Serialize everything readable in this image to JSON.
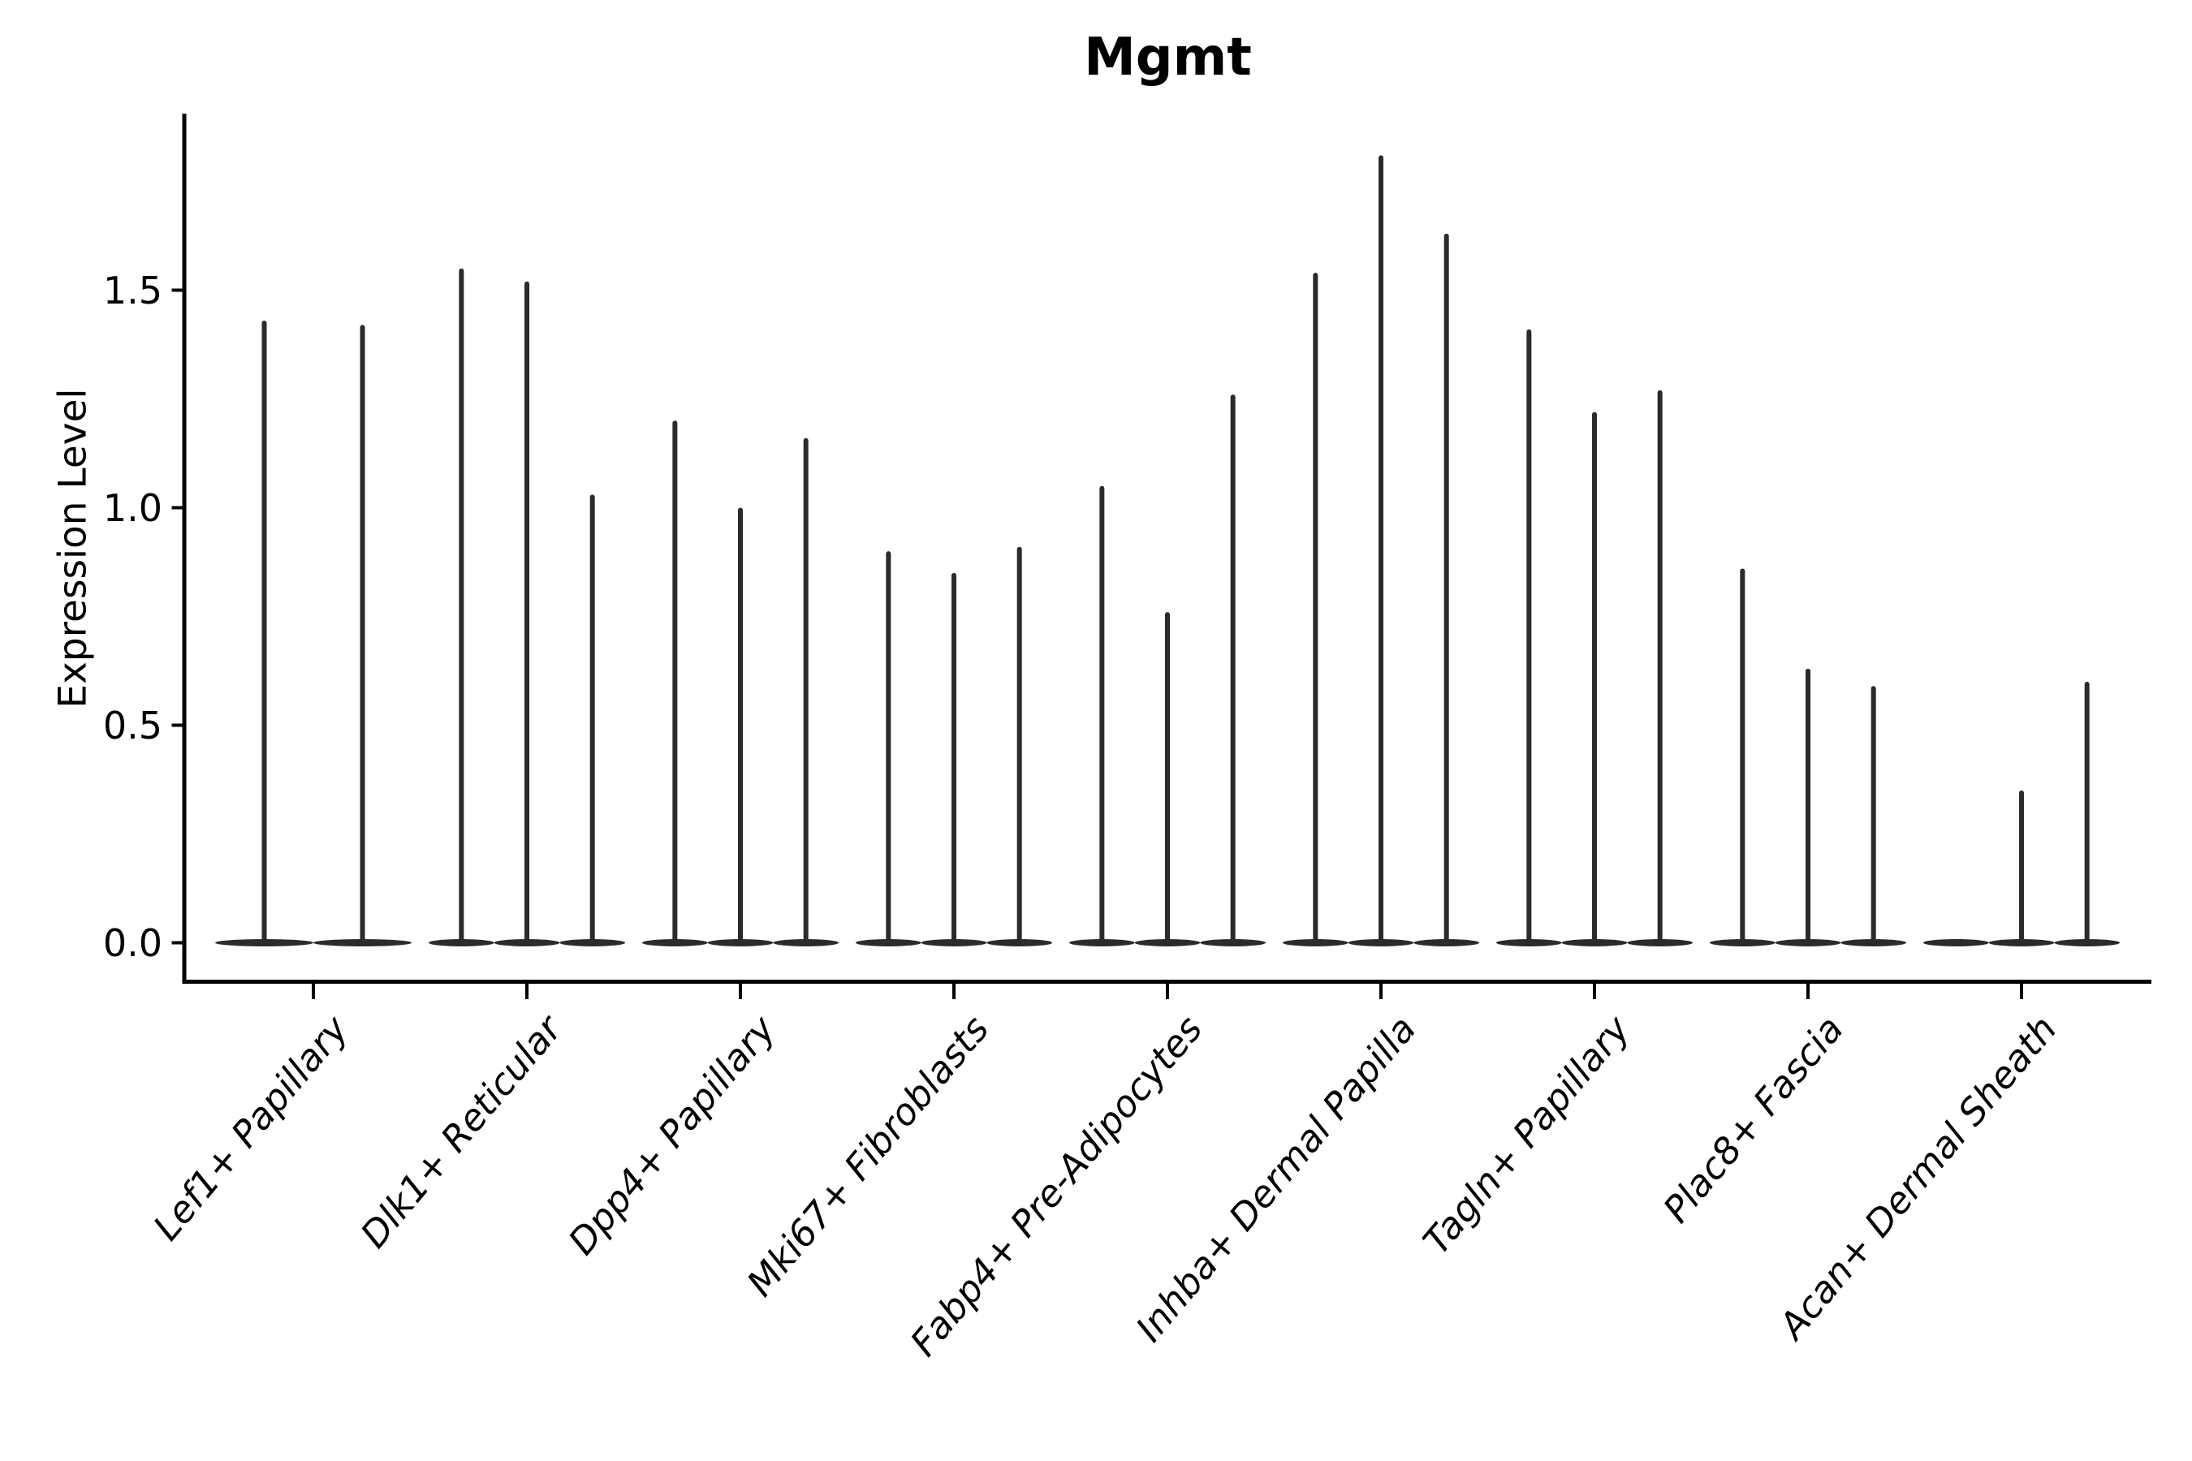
{
  "chart_data": {
    "type": "violin",
    "title": "Mgmt",
    "ylabel": "Expression Level",
    "xlabel": "",
    "ytick_labels": [
      "0.0",
      "0.5",
      "1.0",
      "1.5"
    ],
    "ytick_values": [
      0.0,
      0.5,
      1.0,
      1.5
    ],
    "ylim": [
      -0.094,
      1.906
    ],
    "grid": false,
    "legend": "none",
    "style_notes": "single-cell expression violin plot; each cell-type group holds thin spike-shaped violins with flat bulk at zero",
    "categories": [
      "Lef1+ Papillary",
      "Dlk1+ Reticular",
      "Dpp4+ Papillary",
      "Mki67+ Fibroblasts",
      "Fabp4+ Pre-Adipocytes",
      "Inhba+ Dermal Papilla",
      "Tagln+ Papillary",
      "Plac8+ Fascia",
      "Acan+ Dermal Sheath"
    ],
    "groups": [
      {
        "category": "Lef1+ Papillary",
        "violin_peaks": [
          1.43,
          1.42
        ]
      },
      {
        "category": "Dlk1+ Reticular",
        "violin_peaks": [
          1.55,
          1.52,
          1.03
        ]
      },
      {
        "category": "Dpp4+ Papillary",
        "violin_peaks": [
          1.2,
          1.0,
          1.16
        ]
      },
      {
        "category": "Mki67+ Fibroblasts",
        "violin_peaks": [
          0.9,
          0.85,
          0.91
        ]
      },
      {
        "category": "Fabp4+ Pre-Adipocytes",
        "violin_peaks": [
          1.05,
          0.76,
          1.26
        ]
      },
      {
        "category": "Inhba+ Dermal Papilla",
        "violin_peaks": [
          1.54,
          1.81,
          1.63
        ]
      },
      {
        "category": "Tagln+ Papillary",
        "violin_peaks": [
          1.41,
          1.22,
          1.27
        ]
      },
      {
        "category": "Plac8+ Fascia",
        "violin_peaks": [
          0.86,
          0.63,
          0.59
        ]
      },
      {
        "category": "Acan+ Dermal Sheath",
        "violin_peaks": [
          0.0,
          0.35,
          0.6
        ]
      }
    ],
    "colors": {
      "violin": "#2b2b2b",
      "axis": "#000000",
      "text": "#000000",
      "background": "#ffffff"
    }
  }
}
